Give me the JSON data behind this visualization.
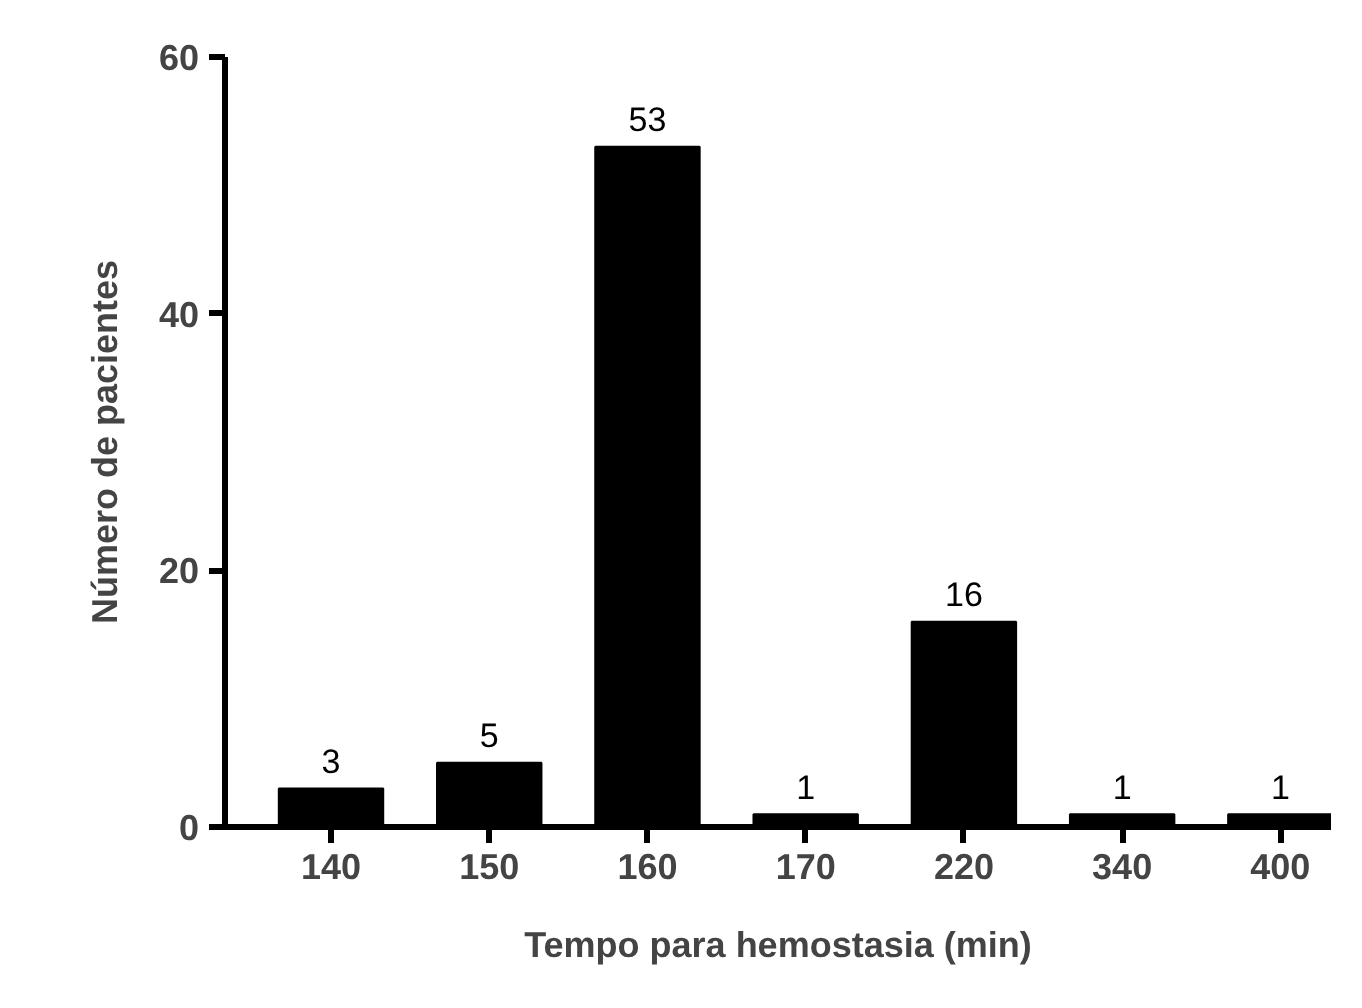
{
  "chart_data": {
    "type": "bar",
    "xlabel": "Tempo para hemostasia (min)",
    "ylabel": "Número de pacientes",
    "categories": [
      "140",
      "150",
      "160",
      "170",
      "220",
      "340",
      "400"
    ],
    "values": [
      3,
      5,
      53,
      1,
      16,
      1,
      1
    ],
    "color": "#000000",
    "ylim": [
      0,
      60
    ],
    "yticks": [
      0,
      20,
      40,
      60
    ],
    "grid": false,
    "data_labels": true
  }
}
